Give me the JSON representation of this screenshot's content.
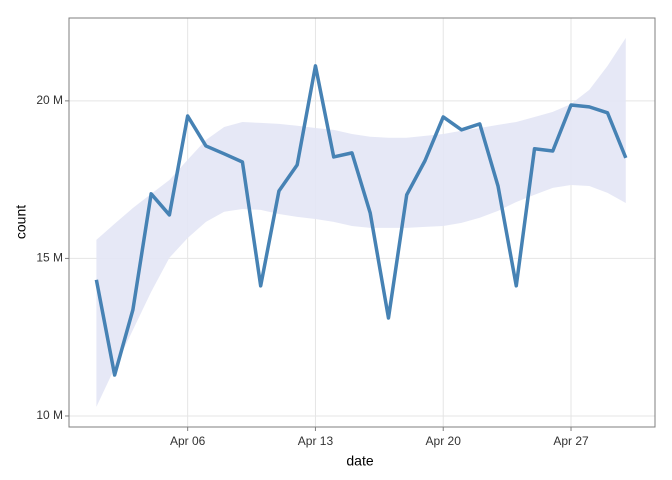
{
  "chart_data": {
    "type": "line",
    "x_label": "date",
    "y_label": "count",
    "x": [
      1,
      2,
      3,
      4,
      5,
      6,
      7,
      8,
      9,
      10,
      11,
      12,
      13,
      14,
      15,
      16,
      17,
      18,
      19,
      20,
      21,
      22,
      23,
      24,
      25,
      26,
      27,
      28,
      29,
      30
    ],
    "series": [
      {
        "color": "#4682b4",
        "values": [
          14.32,
          11.3,
          13.37,
          17.05,
          16.38,
          19.52,
          18.57,
          18.32,
          18.06,
          14.13,
          17.14,
          17.97,
          21.11,
          18.22,
          18.35,
          16.44,
          13.11,
          17.02,
          18.1,
          19.49,
          19.08,
          19.27,
          17.3,
          14.13,
          18.48,
          18.41,
          19.87,
          19.81,
          19.62,
          18.19
        ]
      }
    ],
    "band": {
      "color": "#e3e6f5",
      "upper": [
        15.59,
        16.1,
        16.6,
        17.05,
        17.49,
        18.13,
        18.76,
        19.17,
        19.33,
        19.3,
        19.27,
        19.21,
        19.14,
        19.08,
        18.95,
        18.86,
        18.83,
        18.83,
        18.89,
        18.95,
        19.05,
        19.14,
        19.24,
        19.33,
        19.49,
        19.65,
        19.9,
        20.35,
        21.11,
        22.0
      ],
      "lower": [
        10.29,
        11.52,
        12.73,
        13.94,
        15.02,
        15.65,
        16.16,
        16.48,
        16.57,
        16.54,
        16.41,
        16.32,
        16.25,
        16.16,
        16.03,
        15.97,
        15.97,
        15.97,
        16.0,
        16.03,
        16.13,
        16.29,
        16.51,
        16.79,
        17.02,
        17.24,
        17.33,
        17.3,
        17.08,
        16.76
      ]
    },
    "xlim": [
      -0.5,
      31.6
    ],
    "ylim": [
      9.65,
      22.63
    ],
    "xticks": [
      {
        "value": 6,
        "label": "Apr 06"
      },
      {
        "value": 13,
        "label": "Apr 13"
      },
      {
        "value": 20,
        "label": "Apr 20"
      },
      {
        "value": 27,
        "label": "Apr 27"
      }
    ],
    "yticks": [
      {
        "value": 10,
        "label": "10 M"
      },
      {
        "value": 15,
        "label": "15 M"
      },
      {
        "value": 20,
        "label": "20 M"
      }
    ],
    "grid": true
  }
}
